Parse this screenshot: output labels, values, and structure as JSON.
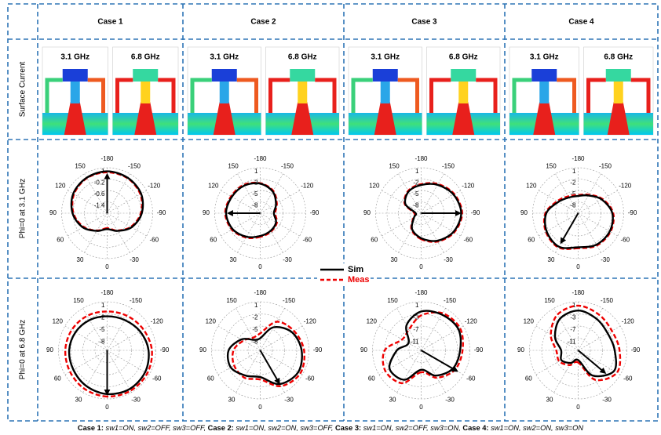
{
  "header": {
    "cases": [
      "Case 1",
      "Case 2",
      "Case 3",
      "Case 4"
    ]
  },
  "row_labels": [
    "Surface Current",
    "Phi=0 at 3.1 GHz",
    "Phi=0 at 6.8 GHz"
  ],
  "surface_current": {
    "frequencies": [
      "3.1 GHz",
      "6.8 GHz"
    ]
  },
  "legend": {
    "sim": "Sim",
    "meas": "Meas"
  },
  "angle_labels": [
    0,
    30,
    60,
    90,
    120,
    150,
    -180,
    -150,
    -120,
    -90,
    -60,
    -30
  ],
  "plots": [
    [
      {
        "radial_labels": [
          1,
          -0.2,
          -0.6,
          -1.4
        ],
        "sim": [
          0.35,
          0.45,
          0.62,
          0.76,
          0.86,
          0.9,
          0.92,
          0.9,
          0.86,
          0.76,
          0.62,
          0.45
        ],
        "meas": [
          0.33,
          0.44,
          0.6,
          0.74,
          0.84,
          0.89,
          0.9,
          0.89,
          0.84,
          0.74,
          0.6,
          0.44
        ],
        "arrow_angle": 180,
        "arrow_length": 0.85
      },
      {
        "radial_labels": [
          1,
          -2,
          -5,
          -8
        ],
        "sim": [
          0.5,
          0.6,
          0.7,
          0.75,
          0.72,
          0.7,
          0.65,
          0.55,
          0.4,
          0.3,
          0.4,
          0.45
        ],
        "meas": [
          0.52,
          0.62,
          0.72,
          0.77,
          0.74,
          0.72,
          0.66,
          0.57,
          0.42,
          0.33,
          0.42,
          0.47
        ],
        "arrow_angle": 90,
        "arrow_length": 0.7
      },
      {
        "radial_labels": [
          1,
          -2,
          -5,
          -8
        ],
        "sim": [
          0.55,
          0.4,
          0.18,
          0.12,
          0.4,
          0.55,
          0.62,
          0.72,
          0.82,
          0.88,
          0.82,
          0.7
        ],
        "meas": [
          0.57,
          0.42,
          0.2,
          0.15,
          0.42,
          0.57,
          0.64,
          0.74,
          0.84,
          0.9,
          0.84,
          0.72
        ],
        "arrow_angle": -90,
        "arrow_length": 0.85
      },
      {
        "radial_labels": [
          1,
          -2,
          -5,
          -8
        ],
        "sim": [
          0.75,
          0.85,
          0.8,
          0.7,
          0.5,
          0.4,
          0.38,
          0.45,
          0.6,
          0.75,
          0.8,
          0.8
        ],
        "meas": [
          0.77,
          0.87,
          0.82,
          0.72,
          0.53,
          0.43,
          0.4,
          0.47,
          0.62,
          0.77,
          0.82,
          0.82
        ],
        "arrow_angle": 30,
        "arrow_length": 0.75
      }
    ],
    [
      {
        "radial_labels": [
          1,
          -2,
          -5,
          -8
        ],
        "sim": [
          0.9,
          0.85,
          0.8,
          0.78,
          0.75,
          0.72,
          0.7,
          0.72,
          0.78,
          0.85,
          0.9,
          0.92
        ],
        "meas": [
          0.95,
          0.92,
          0.88,
          0.86,
          0.84,
          0.82,
          0.8,
          0.82,
          0.86,
          0.92,
          0.95,
          0.96
        ],
        "arrow_angle": 0,
        "arrow_length": 0.9
      },
      {
        "radial_labels": [
          1,
          -2,
          -5,
          -8
        ],
        "sim": [
          0.55,
          0.6,
          0.7,
          0.65,
          0.45,
          0.25,
          0.25,
          0.55,
          0.75,
          0.85,
          0.9,
          0.8
        ],
        "meas": [
          0.6,
          0.65,
          0.62,
          0.55,
          0.4,
          0.3,
          0.35,
          0.68,
          0.8,
          0.9,
          0.95,
          0.85
        ],
        "arrow_angle": -30,
        "arrow_length": 0.78
      },
      {
        "radial_labels": [
          1,
          -3,
          -7,
          -11
        ],
        "sim": [
          0.4,
          0.7,
          0.75,
          0.5,
          0.3,
          0.6,
          0.8,
          0.85,
          0.88,
          0.8,
          0.75,
          0.6
        ],
        "meas": [
          0.45,
          0.78,
          0.85,
          0.75,
          0.45,
          0.5,
          0.72,
          0.88,
          0.92,
          0.85,
          0.8,
          0.65
        ],
        "arrow_angle": -60,
        "arrow_length": 0.85
      },
      {
        "radial_labels": [
          1,
          -3,
          -7,
          -11
        ],
        "sim": [
          0.2,
          0.3,
          0.4,
          0.35,
          0.55,
          0.75,
          0.82,
          0.75,
          0.7,
          0.75,
          0.85,
          0.6
        ],
        "meas": [
          0.25,
          0.35,
          0.45,
          0.45,
          0.65,
          0.85,
          0.92,
          0.85,
          0.8,
          0.85,
          0.92,
          0.7
        ],
        "arrow_angle": -50,
        "arrow_length": 0.72
      }
    ]
  ],
  "caption": [
    {
      "case": "Case 1:",
      "state": "sw1=ON, sw2=OFF, sw3=OFF,"
    },
    {
      "case": "Case 2:",
      "state": "sw1=ON, sw2=ON, sw3=OFF,"
    },
    {
      "case": "Case 3:",
      "state": "sw1=ON, sw2=OFF, sw3=ON,"
    },
    {
      "case": "Case 4:",
      "state": "sw1=ON, sw2=ON, sw3=ON"
    }
  ]
}
